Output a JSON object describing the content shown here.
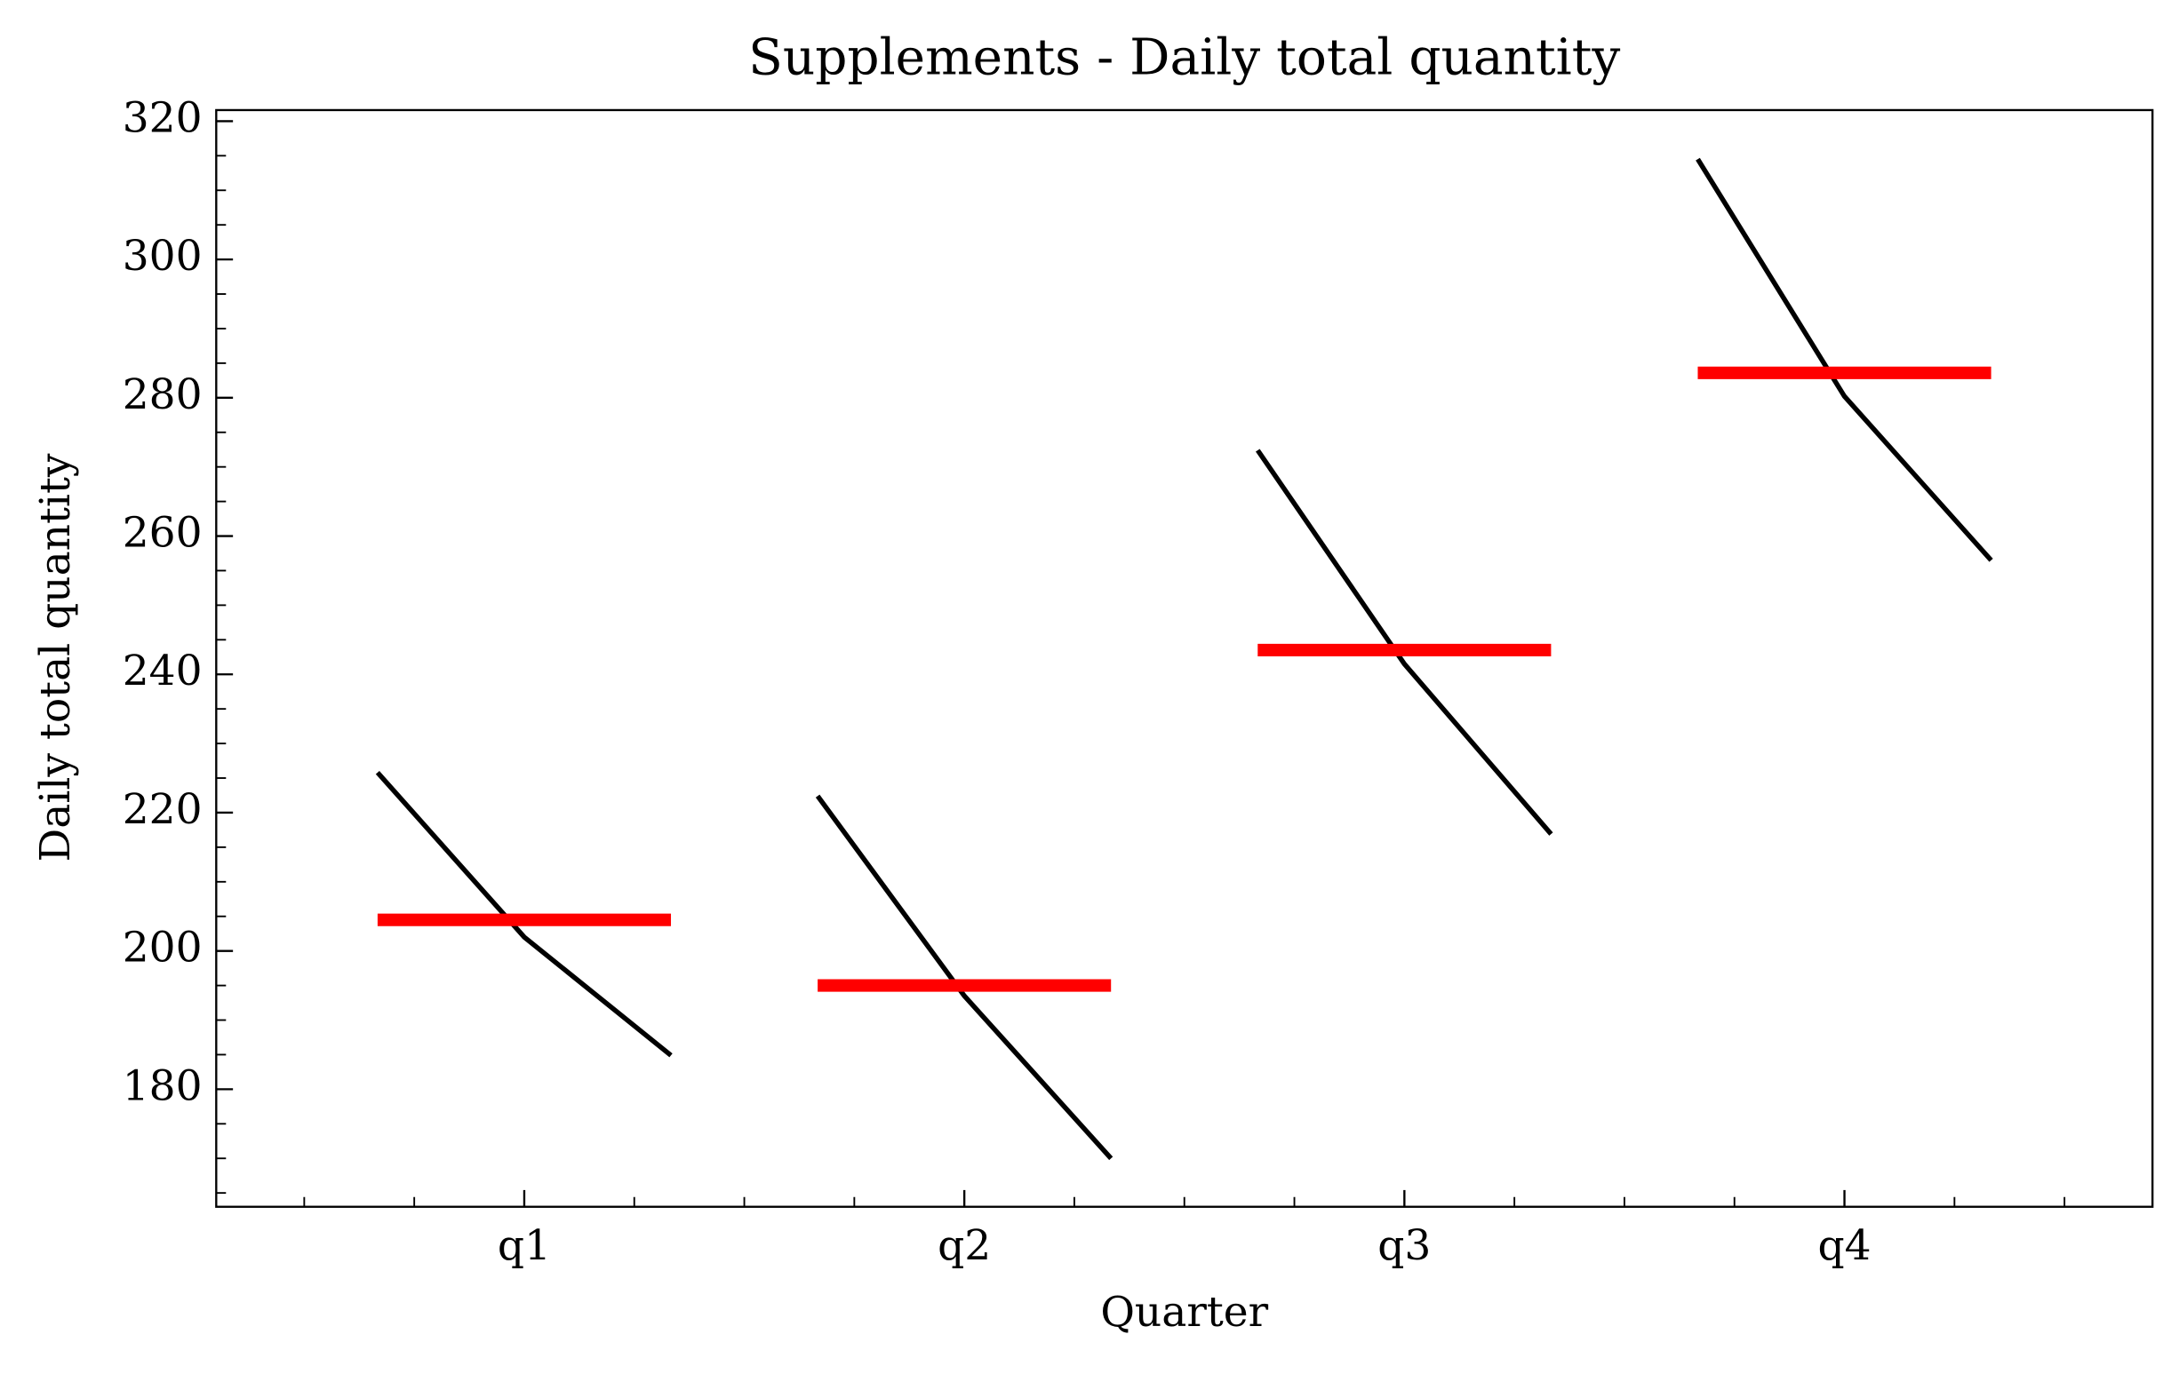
{
  "chart_data": {
    "type": "quarter_plot",
    "title": "Supplements - Daily total quantity",
    "xlabel": "Quarter",
    "ylabel": "Daily total quantity",
    "categories": [
      "q1",
      "q2",
      "q3",
      "q4"
    ],
    "groups": [
      {
        "values": [
          225.8,
          202,
          184.9
        ],
        "mean": 204.5
      },
      {
        "values": [
          222.4,
          193.5,
          170
        ],
        "mean": 195
      },
      {
        "values": [
          272.4,
          241.5,
          216.9
        ],
        "mean": 243.5
      },
      {
        "values": [
          314.5,
          280.2,
          256.5
        ],
        "mean": 283.6
      }
    ],
    "line_color": "#000000",
    "mean_color": "#ff0000",
    "xlim": [
      -0.7,
      3.7
    ],
    "x_minor_step": 0.25,
    "ylim": [
      163,
      321.6
    ],
    "yticks": [
      180,
      200,
      220,
      240,
      260,
      280,
      300,
      320
    ],
    "y_minor_step": 5
  }
}
